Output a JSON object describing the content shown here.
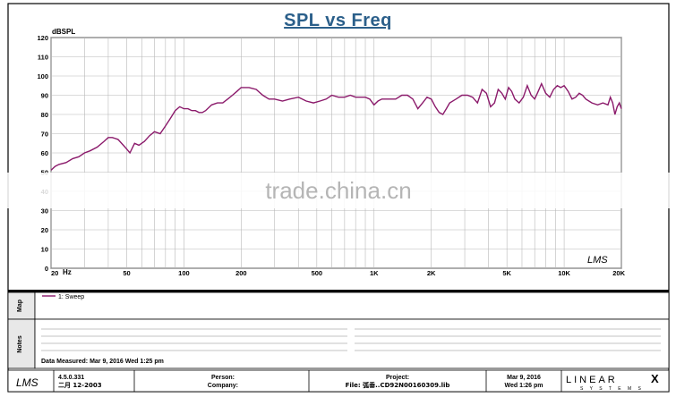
{
  "chart_data": {
    "type": "line",
    "title": "SPL vs Freq",
    "ylabel": "dBSPL",
    "xlabel": "",
    "xscale": "log",
    "xlim": [
      20,
      20000
    ],
    "ylim": [
      0,
      120
    ],
    "grid": true,
    "legend_position": "top-left",
    "yticks": [
      0,
      10,
      20,
      30,
      40,
      50,
      60,
      70,
      80,
      90,
      100,
      110,
      120
    ],
    "xtick_labels": [
      {
        "value": 20,
        "label": "20"
      },
      {
        "value": 50,
        "label": "50"
      },
      {
        "value": 100,
        "label": "100"
      },
      {
        "value": 200,
        "label": "200"
      },
      {
        "value": 500,
        "label": "500"
      },
      {
        "value": 1000,
        "label": "1K"
      },
      {
        "value": 2000,
        "label": "2K"
      },
      {
        "value": 5000,
        "label": "5K"
      },
      {
        "value": 10000,
        "label": "10K"
      },
      {
        "value": 20000,
        "label": "20K"
      }
    ],
    "x_unit_label": "Hz",
    "series": [
      {
        "name": "1: Sweep",
        "color": "#8b1a6b",
        "x": [
          20,
          21,
          22,
          24,
          26,
          28,
          30,
          32,
          35,
          38,
          40,
          42,
          45,
          48,
          50,
          52,
          55,
          58,
          62,
          66,
          70,
          75,
          80,
          85,
          90,
          95,
          100,
          105,
          110,
          115,
          120,
          125,
          130,
          140,
          150,
          160,
          170,
          180,
          190,
          200,
          210,
          220,
          240,
          260,
          280,
          300,
          330,
          360,
          400,
          440,
          480,
          520,
          560,
          600,
          650,
          700,
          750,
          800,
          850,
          900,
          950,
          1000,
          1050,
          1100,
          1200,
          1300,
          1400,
          1500,
          1600,
          1700,
          1800,
          1900,
          2000,
          2100,
          2200,
          2300,
          2400,
          2500,
          2700,
          2900,
          3100,
          3300,
          3500,
          3700,
          3900,
          4100,
          4300,
          4500,
          4700,
          4900,
          5100,
          5300,
          5500,
          5800,
          6100,
          6400,
          6700,
          7000,
          7300,
          7600,
          8000,
          8400,
          8800,
          9200,
          9600,
          10000,
          10500,
          11000,
          11500,
          12000,
          12500,
          13000,
          14000,
          15000,
          16000,
          17000,
          17500,
          18000,
          18500,
          19000,
          19500,
          20000
        ],
        "y": [
          51,
          53,
          54,
          55,
          57,
          58,
          60,
          61,
          63,
          66,
          68,
          68,
          67,
          64,
          62,
          60,
          65,
          64,
          66,
          69,
          71,
          70,
          74,
          78,
          82,
          84,
          83,
          83,
          82,
          82,
          81,
          81,
          82,
          85,
          86,
          86,
          88,
          90,
          92,
          94,
          94,
          94,
          93,
          90,
          88,
          88,
          87,
          88,
          89,
          87,
          86,
          87,
          88,
          90,
          89,
          89,
          90,
          89,
          89,
          89,
          88,
          85,
          87,
          88,
          88,
          88,
          90,
          90,
          88,
          83,
          86,
          89,
          88,
          84,
          81,
          80,
          83,
          86,
          88,
          90,
          90,
          89,
          86,
          93,
          91,
          84,
          86,
          93,
          91,
          88,
          94,
          92,
          88,
          86,
          89,
          95,
          90,
          88,
          92,
          96,
          91,
          89,
          93,
          95,
          94,
          95,
          92,
          88,
          89,
          91,
          90,
          88,
          86,
          85,
          86,
          85,
          89,
          86,
          80,
          84,
          86,
          83
        ]
      }
    ]
  },
  "side_panels": {
    "map_label": "Map",
    "notes_label": "Notes"
  },
  "legend_entry": "1: Sweep",
  "data_measured": "Data Measured: Mar  9, 2016  Wed  1:25 pm",
  "footer": {
    "lms_logo": "LMS",
    "version": "4.5.0.331",
    "version_date": "二月 12-2003",
    "person_label": "Person:",
    "company_label": "Company:",
    "project_label": "Project:",
    "file_label": "File: 弧垂..CD92N00160309.lib",
    "date_line": "Mar  9, 2016",
    "time_line": "Wed  1:26 pm",
    "brand_top": "LINEAR",
    "brand_x": "X",
    "brand_bottom": "S Y S T E M S"
  },
  "plot_signature": "LMS",
  "watermark": "trade.china.cn",
  "colors": {
    "title": "#2b5f8a",
    "curve": "#8b1a6b",
    "grid": "#b8b8b8",
    "border": "#000000"
  }
}
